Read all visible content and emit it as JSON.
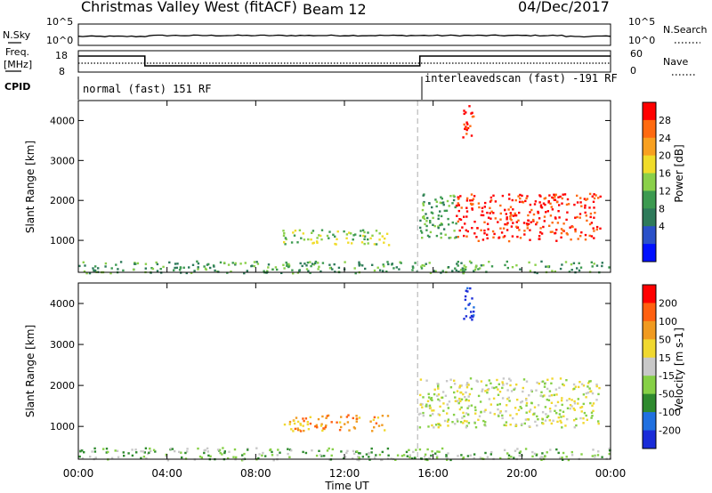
{
  "header": {
    "title": "Christmas Valley West (fitACF)",
    "beam": "Beam 12",
    "date": "04/Dec/2017"
  },
  "status_panels": {
    "nsky_label": "N.Sky",
    "nsearch_label": "N.Search",
    "count_ticks": [
      "10^5",
      "10^0"
    ],
    "freq_label_line1": "Freq.",
    "freq_label_line2": "[MHz]",
    "freq_ticks": [
      "18",
      "8"
    ],
    "nave_label": "Nave",
    "nave_ticks": [
      "60",
      "0"
    ],
    "cpid_label": "CPID",
    "cpid_segments": [
      {
        "label": "normal (fast) 151 RF",
        "start_hour": 0,
        "end_hour": 15.3
      },
      {
        "label": "interleavedscan (fast) -191 RF",
        "start_hour": 15.3,
        "end_hour": 24
      }
    ],
    "frequency_steps": [
      {
        "start_hour": 0,
        "end_hour": 3,
        "level": "high"
      },
      {
        "start_hour": 3,
        "end_hour": 15.4,
        "level": "low"
      },
      {
        "start_hour": 15.4,
        "end_hour": 24,
        "level": "high"
      }
    ]
  },
  "colors": {
    "power": [
      "#0010ff",
      "#2a50c8",
      "#2e7a5a",
      "#3c9a50",
      "#8ad04a",
      "#f0dc2a",
      "#f8a020",
      "#ff6a10",
      "#ff0000"
    ],
    "velocity": [
      "#1a2cd8",
      "#2070e0",
      "#2e8a2e",
      "#86d046",
      "#c8c8c8",
      "#f0d830",
      "#f09a20",
      "#ff6010",
      "#ff0000"
    ]
  },
  "chart_data": [
    {
      "type": "heatmap",
      "title": "Power",
      "xlabel": "Time UT",
      "ylabel": "Slant Range [km]",
      "colorbar_label": "Power [dB]",
      "colorbar_ticks": [
        "28",
        "24",
        "20",
        "16",
        "12",
        "8",
        "4"
      ],
      "x_ticks": [
        "00:00",
        "04:00",
        "08:00",
        "12:00",
        "16:00",
        "20:00",
        "00:00"
      ],
      "xlim": [
        0,
        24
      ],
      "y_ticks": [
        "4000",
        "3000",
        "2000",
        "1000"
      ],
      "ylim": [
        200,
        4500
      ],
      "dashed_marker_hour": 15.3,
      "features": [
        {
          "start_hour": 0.0,
          "end_hour": 24.0,
          "range_low": 200,
          "range_high": 500,
          "level": 3
        },
        {
          "start_hour": 9.2,
          "end_hour": 14.0,
          "range_low": 900,
          "range_high": 1300,
          "level": 4
        },
        {
          "start_hour": 17.0,
          "end_hour": 23.5,
          "range_low": 1000,
          "range_high": 2200,
          "level": 8
        },
        {
          "start_hour": 17.3,
          "end_hour": 17.8,
          "range_low": 3600,
          "range_high": 4400,
          "level": 8
        },
        {
          "start_hour": 15.3,
          "end_hour": 17.0,
          "range_low": 1000,
          "range_high": 2200,
          "level": 3
        }
      ]
    },
    {
      "type": "heatmap",
      "title": "Velocity",
      "xlabel": "Time UT",
      "ylabel": "Slant Range [km]",
      "colorbar_label": "Velocity [m s-1]",
      "colorbar_ticks": [
        "200",
        "100",
        "50",
        "15",
        "-15",
        "-50",
        "-100",
        "-200"
      ],
      "x_ticks": [
        "00:00",
        "04:00",
        "08:00",
        "12:00",
        "16:00",
        "20:00",
        "00:00"
      ],
      "xlim": [
        0,
        24
      ],
      "y_ticks": [
        "4000",
        "3000",
        "2000",
        "1000"
      ],
      "ylim": [
        200,
        4500
      ],
      "dashed_marker_hour": 15.3,
      "features": [
        {
          "start_hour": 0.0,
          "end_hour": 24.0,
          "range_low": 200,
          "range_high": 500,
          "level": 3
        },
        {
          "start_hour": 9.2,
          "end_hour": 14.0,
          "range_low": 900,
          "range_high": 1300,
          "level": 6
        },
        {
          "start_hour": 17.0,
          "end_hour": 23.5,
          "range_low": 1000,
          "range_high": 2200,
          "level": 4
        },
        {
          "start_hour": 17.3,
          "end_hour": 17.8,
          "range_low": 3600,
          "range_high": 4400,
          "level": 0
        },
        {
          "start_hour": 15.3,
          "end_hour": 17.0,
          "range_low": 1000,
          "range_high": 2200,
          "level": 4
        }
      ]
    }
  ]
}
